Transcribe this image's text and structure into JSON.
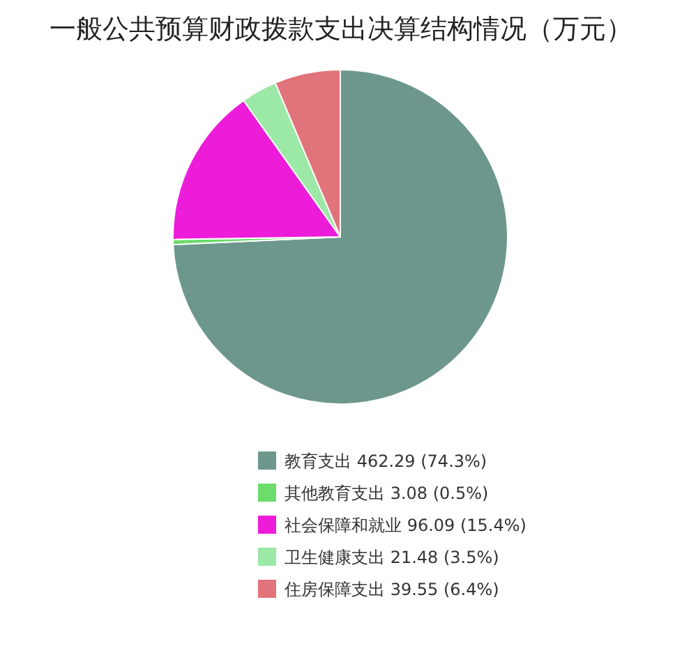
{
  "chart_data": {
    "type": "pie",
    "title": "一般公共预算财政拨款支出决算结构情况（万元）",
    "categories": [
      "教育支出",
      "其他教育支出",
      "社会保障和就业",
      "卫生健康支出",
      "住房保障支出"
    ],
    "values": [
      462.29,
      3.08,
      96.09,
      21.48,
      39.55
    ],
    "value_labels": [
      "462.29 (74.3%)",
      "3.08 (0.5%)",
      "96.09 (15.4%)",
      "21.48 (3.5%)",
      "39.55 (6.4%)"
    ],
    "colors": [
      "#6d978d",
      "#6cdc6c",
      "#ec1cd9",
      "#9ce8a6",
      "#e1737b"
    ],
    "legend": "bottom"
  }
}
